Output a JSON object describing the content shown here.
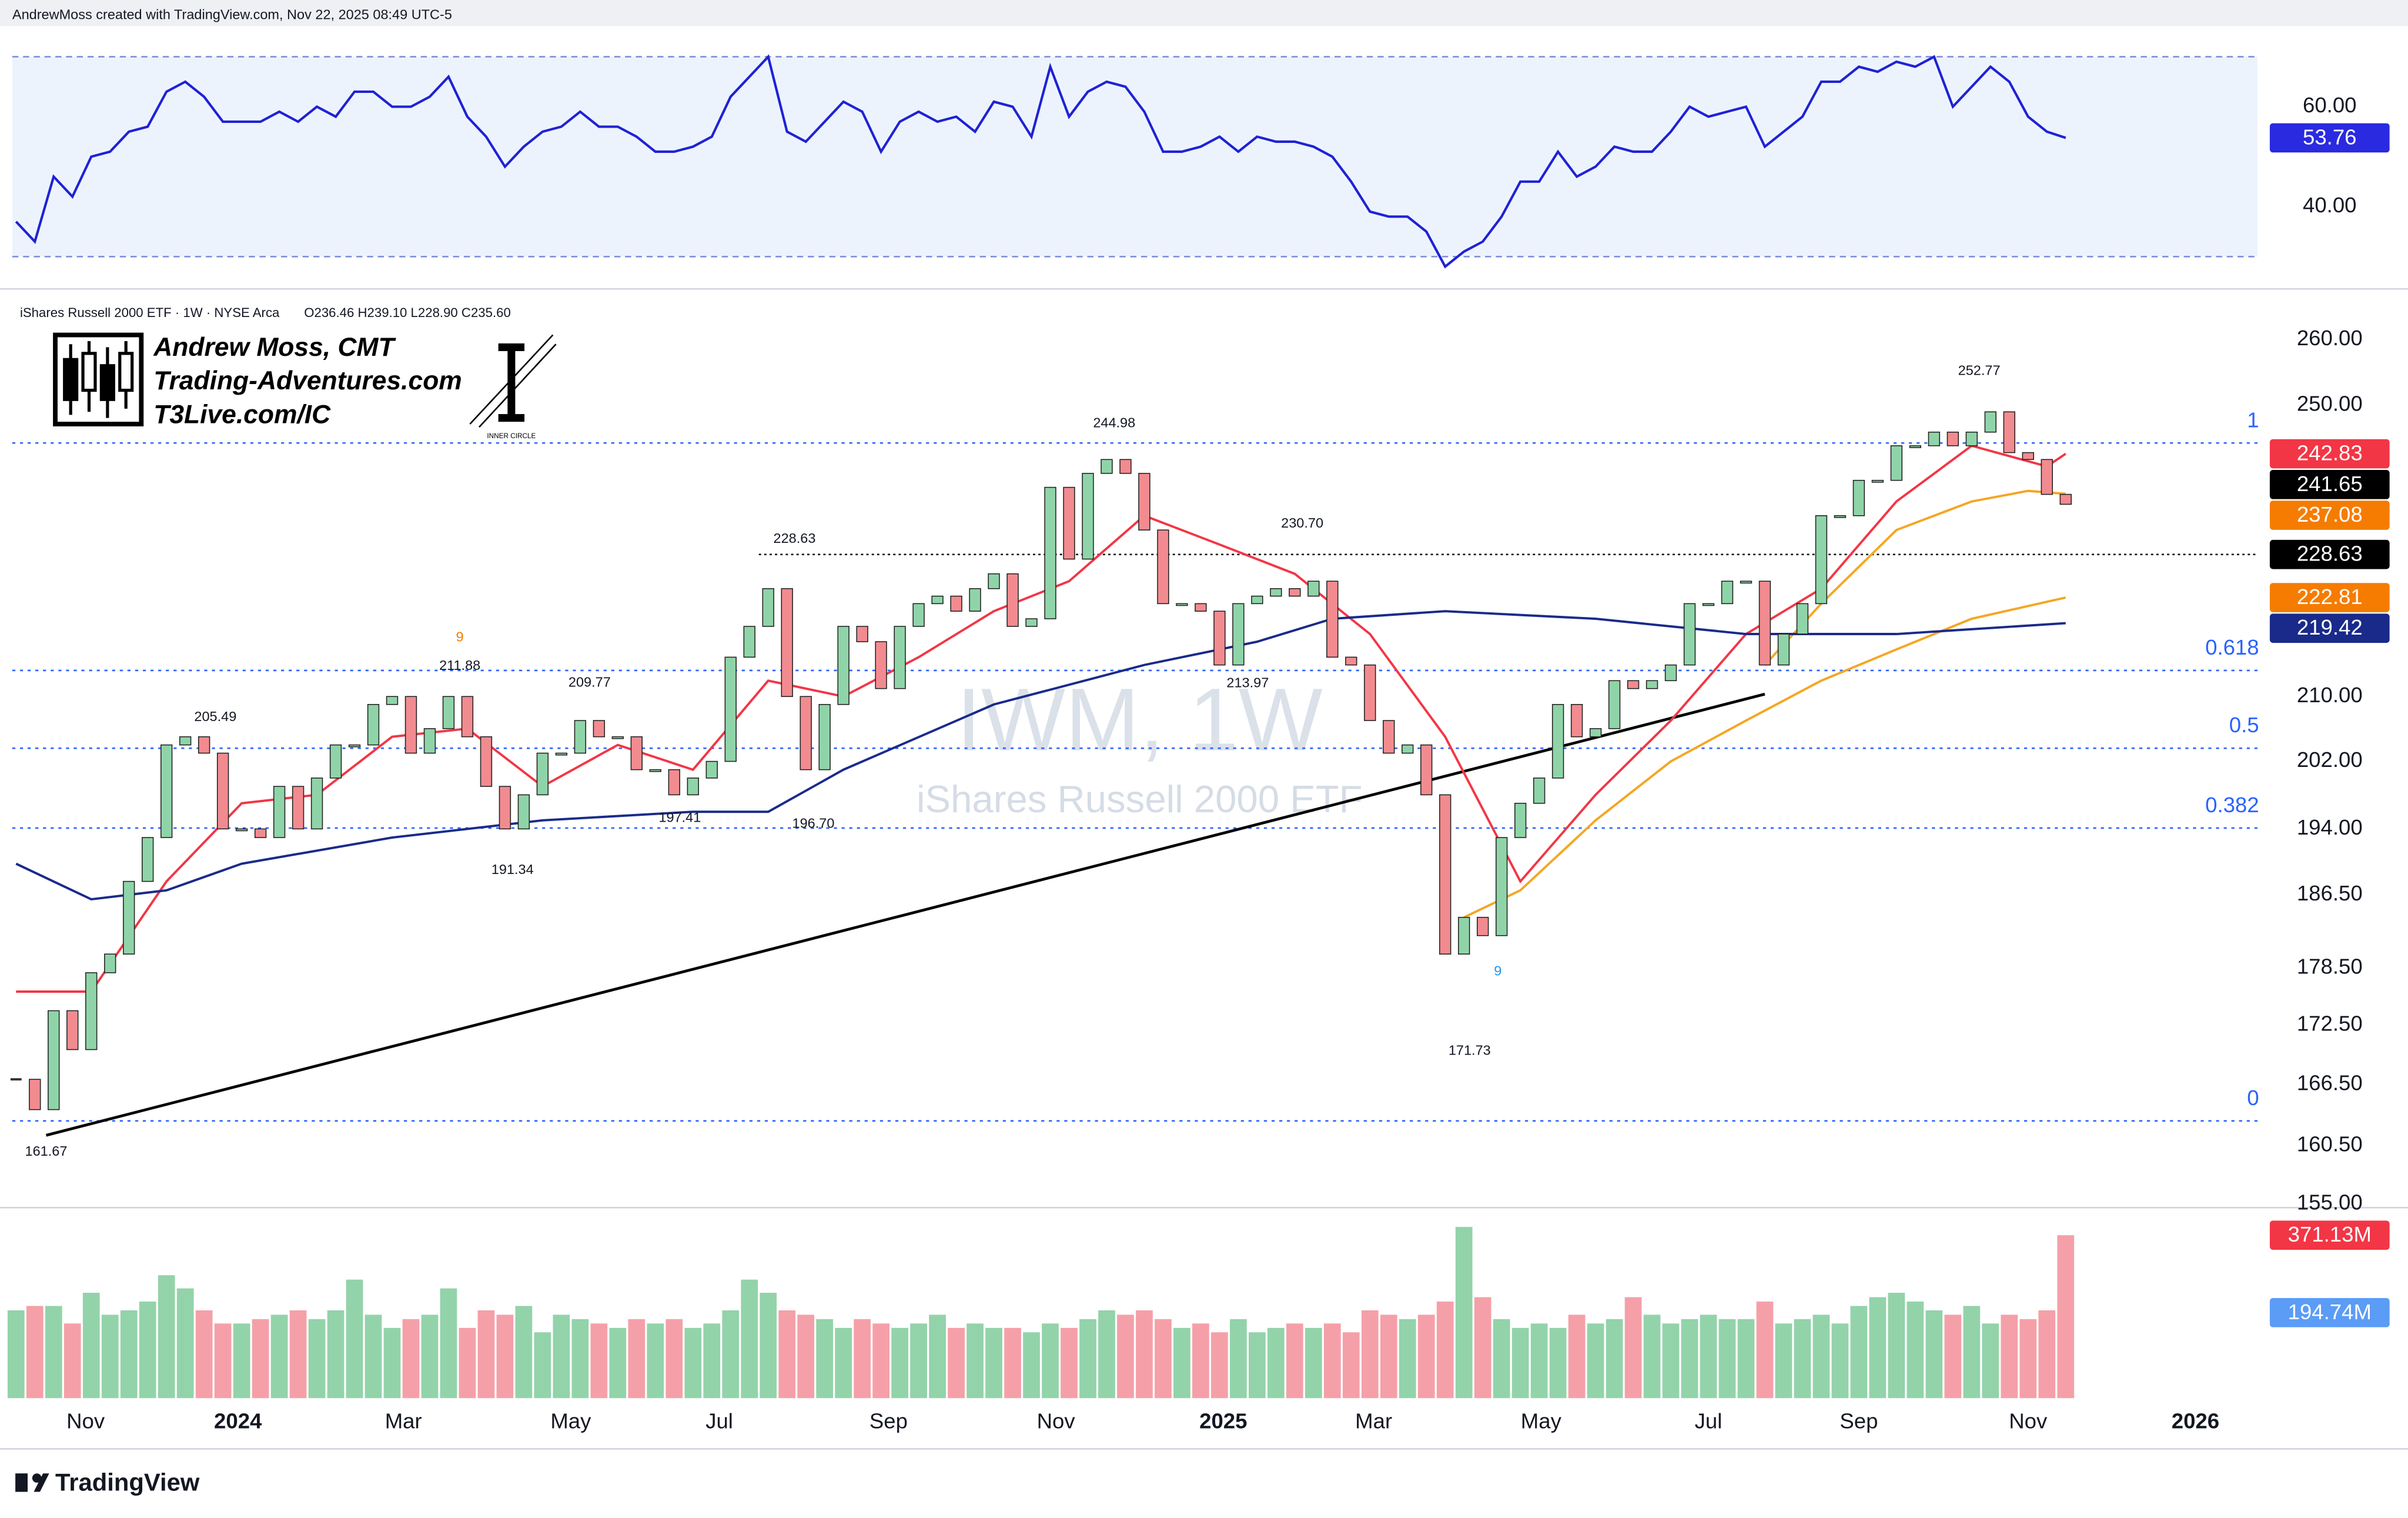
{
  "header": {
    "credit": "AndrewMoss created with TradingView.com, Nov 22, 2025 08:49 UTC-5",
    "symbol": "iShares Russell 2000 ETF · 1W · NYSE Arca",
    "ohlc": "O236.46 H239.10 L228.90 C235.60"
  },
  "logo": {
    "name": "Andrew Moss, CMT",
    "site": "Trading-Adventures.com",
    "link": "T3Live.com/IC",
    "badge": "INNER CIRCLE"
  },
  "watermark": {
    "symbol": "IWM, 1W",
    "name": "iShares Russell 2000 ETF"
  },
  "footer": {
    "brand": "TradingView"
  },
  "chart_data": [
    {
      "type": "candlestick",
      "xlim": [
        -0.2,
        119.2
      ],
      "xticks": [
        {
          "value": 3.7,
          "label": "Nov"
        },
        {
          "value": 11.8,
          "label": "2024"
        },
        {
          "value": 20.6,
          "label": "Mar"
        },
        {
          "value": 29.5,
          "label": "May"
        },
        {
          "value": 37.4,
          "label": "Jul"
        },
        {
          "value": 46.4,
          "label": "Sep"
        },
        {
          "value": 55.3,
          "label": "Nov"
        },
        {
          "value": 64.2,
          "label": "2025"
        },
        {
          "value": 72.2,
          "label": "Mar"
        },
        {
          "value": 81.1,
          "label": "May"
        },
        {
          "value": 90.0,
          "label": "Jul"
        },
        {
          "value": 98.0,
          "label": "Sep"
        },
        {
          "value": 107.0,
          "label": "Nov"
        },
        {
          "value": 115.9,
          "label": "2026"
        }
      ],
      "ylim": [
        154.8,
        266.3
      ],
      "log_scale": true,
      "yticks": [
        {
          "value": 155,
          "label": "155.00"
        },
        {
          "value": 160.5,
          "label": "160.50"
        },
        {
          "value": 166.5,
          "label": "166.50"
        },
        {
          "value": 172.5,
          "label": "172.50"
        },
        {
          "value": 178.5,
          "label": "178.50"
        },
        {
          "value": 186.5,
          "label": "186.50"
        },
        {
          "value": 194,
          "label": "194.00"
        },
        {
          "value": 202,
          "label": "202.00"
        },
        {
          "value": 210,
          "label": "210.00"
        },
        {
          "value": 250,
          "label": "250.00"
        },
        {
          "value": 260,
          "label": "260.00"
        }
      ],
      "closes": [
        167,
        164,
        174,
        170,
        178,
        180,
        188,
        193,
        204,
        205,
        203,
        194,
        194,
        193,
        199,
        194,
        200,
        204,
        204,
        209,
        210,
        203,
        206,
        210,
        205,
        199,
        194,
        198,
        203,
        203,
        207,
        205,
        205,
        201,
        201,
        198,
        200,
        202,
        215,
        219,
        224,
        210,
        201,
        209,
        219,
        217,
        211,
        219,
        222,
        223,
        221,
        224,
        226,
        219,
        220,
        238,
        228,
        240,
        242,
        240,
        232,
        222,
        222,
        221,
        214,
        222,
        223,
        224,
        223,
        225,
        215,
        214,
        207,
        203,
        204,
        198,
        180,
        184,
        182,
        193,
        197,
        200,
        209,
        205,
        206,
        212,
        211,
        212,
        214,
        222,
        222,
        225,
        225,
        214,
        218,
        222,
        234,
        234,
        239,
        239,
        244,
        244,
        246,
        244,
        246,
        249,
        243,
        242,
        237,
        235.6
      ],
      "up_color": "#8fd4a8",
      "down_color": "#f28b90",
      "overlays": [
        {
          "color": "#f23645",
          "x": [
            0,
            4,
            8,
            12,
            16,
            20,
            24,
            28,
            32,
            36,
            40,
            44,
            48,
            52,
            56,
            60,
            64,
            68,
            72,
            76,
            80,
            84,
            88,
            92,
            96,
            100,
            104,
            108,
            109
          ],
          "values": [
            176,
            176,
            188,
            197,
            198,
            205,
            206,
            199,
            204,
            201,
            212,
            210,
            215,
            221,
            225,
            234,
            230,
            226,
            218,
            205,
            188,
            198,
            207,
            218,
            224,
            236,
            244,
            241,
            242.83
          ]
        },
        {
          "color": "#f5a623",
          "x": [
            77,
            80,
            84,
            88,
            92,
            96,
            100,
            104,
            109
          ],
          "values": [
            184,
            187,
            195,
            202,
            207,
            212,
            216,
            220,
            222.81
          ]
        },
        {
          "color": "#f5a623",
          "x": [
            93,
            96,
            100,
            104,
            107,
            109
          ],
          "values": [
            214,
            222,
            232,
            236,
            237.5,
            237.08
          ]
        },
        {
          "color": "#1a2a8a",
          "x": [
            0,
            4,
            8,
            12,
            20,
            28,
            36,
            40,
            44,
            52,
            60,
            66,
            70,
            76,
            84,
            92,
            100,
            109
          ],
          "values": [
            190,
            186,
            187,
            190,
            193,
            195,
            196,
            196,
            201,
            209,
            214,
            217,
            220,
            221,
            220,
            218,
            218,
            219.42
          ]
        }
      ],
      "trendline": {
        "color": "#000000",
        "x": [
          1.6,
          93
        ],
        "values": [
          161.5,
          210.3
        ]
      },
      "levels": [
        {
          "value": 228.63,
          "x": 39.5,
          "color": "#000000"
        }
      ],
      "fib": {
        "color": "#2962ff",
        "levels": [
          1,
          0.618,
          0.5,
          0.382,
          0
        ],
        "prices": [
          244.4,
          213.3,
          203.6,
          194.1,
          162.9
        ]
      },
      "annotations": [
        {
          "x": 1.6,
          "value": 161.67,
          "side": "low"
        },
        {
          "x": 10.6,
          "value": 205.49,
          "side": "high"
        },
        {
          "x": 23.6,
          "value": 211.88,
          "side": "high"
        },
        {
          "x": 30.5,
          "value": 209.77,
          "side": "high"
        },
        {
          "x": 26.4,
          "value": 191.34,
          "side": "low"
        },
        {
          "x": 35.3,
          "value": 197.41,
          "side": "low"
        },
        {
          "x": 41.4,
          "value": 228.63,
          "side": "high"
        },
        {
          "x": 42.4,
          "value": 196.7,
          "label": "196.70",
          "side": "low"
        },
        {
          "x": 58.4,
          "value": 244.98,
          "side": "high"
        },
        {
          "x": 68.4,
          "value": 230.7,
          "label": "230.70",
          "side": "high"
        },
        {
          "x": 65.5,
          "value": 213.97,
          "side": "low"
        },
        {
          "x": 77.3,
          "value": 171.73,
          "side": "low"
        },
        {
          "x": 104.4,
          "value": 252.77,
          "side": "high"
        }
      ],
      "markers": [
        {
          "label": "9",
          "x": 23.6,
          "value": 217.5,
          "color": "#f57c00"
        },
        {
          "label": "9",
          "x": 78.8,
          "value": 178.1,
          "color": "#2196f3"
        }
      ],
      "price_tags": [
        {
          "value": 242.83,
          "color": "#f23645"
        },
        {
          "value": 241.65,
          "color": "#000000"
        },
        {
          "value": 237.08,
          "color": "#f57c00"
        },
        {
          "value": 228.63,
          "color": "#000000"
        },
        {
          "value": 222.81,
          "color": "#f57c00"
        },
        {
          "value": 219.42,
          "color": "#1a2a8a"
        }
      ]
    },
    {
      "type": "line",
      "ylim": [
        26,
        75.2
      ],
      "yticks": [
        {
          "value": 60,
          "label": "60.00"
        },
        {
          "value": 40,
          "label": "40.00"
        }
      ],
      "band": [
        30,
        70
      ],
      "color": "#1f22d4",
      "values": [
        37,
        33,
        46,
        42,
        50,
        51,
        55,
        56,
        63,
        65,
        62,
        57,
        57,
        57,
        59,
        57,
        60,
        58,
        63,
        63,
        60,
        60,
        62,
        66,
        58,
        54,
        48,
        52,
        55,
        56,
        59,
        56,
        56,
        54,
        51,
        51,
        52,
        54,
        62,
        66,
        70,
        55,
        53,
        57,
        61,
        59,
        51,
        57,
        59,
        57,
        58,
        55,
        61,
        60,
        54,
        68,
        58,
        63,
        65,
        64,
        59,
        51,
        51,
        52,
        54,
        51,
        54,
        53,
        53,
        52,
        50,
        45,
        39,
        38,
        38,
        35,
        28,
        31,
        33,
        38,
        45,
        45,
        51,
        46,
        48,
        52,
        51,
        51,
        55,
        60,
        58,
        59,
        60,
        52,
        55,
        58,
        65,
        65,
        68,
        67,
        69,
        68,
        70,
        60,
        64,
        68,
        65,
        58,
        55,
        53.76
      ],
      "price_tags": [
        {
          "value": 53.76,
          "color": "#2a2ae0"
        }
      ]
    },
    {
      "type": "bar",
      "ylim": [
        0,
        420
      ],
      "up_color": "#93d3aa",
      "down_color": "#f5a0a8",
      "values": [
        200,
        210,
        210,
        170,
        240,
        190,
        200,
        220,
        280,
        250,
        200,
        170,
        170,
        180,
        190,
        200,
        180,
        200,
        270,
        190,
        160,
        180,
        190,
        250,
        160,
        200,
        190,
        210,
        150,
        190,
        180,
        170,
        160,
        180,
        170,
        180,
        160,
        170,
        200,
        270,
        240,
        200,
        190,
        180,
        160,
        180,
        170,
        160,
        170,
        190,
        160,
        170,
        160,
        160,
        150,
        170,
        160,
        180,
        200,
        190,
        200,
        180,
        160,
        170,
        150,
        180,
        150,
        160,
        170,
        160,
        170,
        150,
        200,
        190,
        180,
        190,
        220,
        390,
        230,
        180,
        160,
        170,
        160,
        190,
        170,
        180,
        230,
        190,
        170,
        180,
        190,
        180,
        180,
        220,
        170,
        180,
        190,
        170,
        210,
        230,
        240,
        220,
        200,
        190,
        210,
        170,
        190,
        180,
        200,
        371.13
      ],
      "price_tags": [
        {
          "value": 371.13,
          "label": "371.13M",
          "color": "#f23645"
        },
        {
          "value": 194.74,
          "label": "194.74M",
          "color": "#5b9cf6"
        }
      ]
    }
  ]
}
